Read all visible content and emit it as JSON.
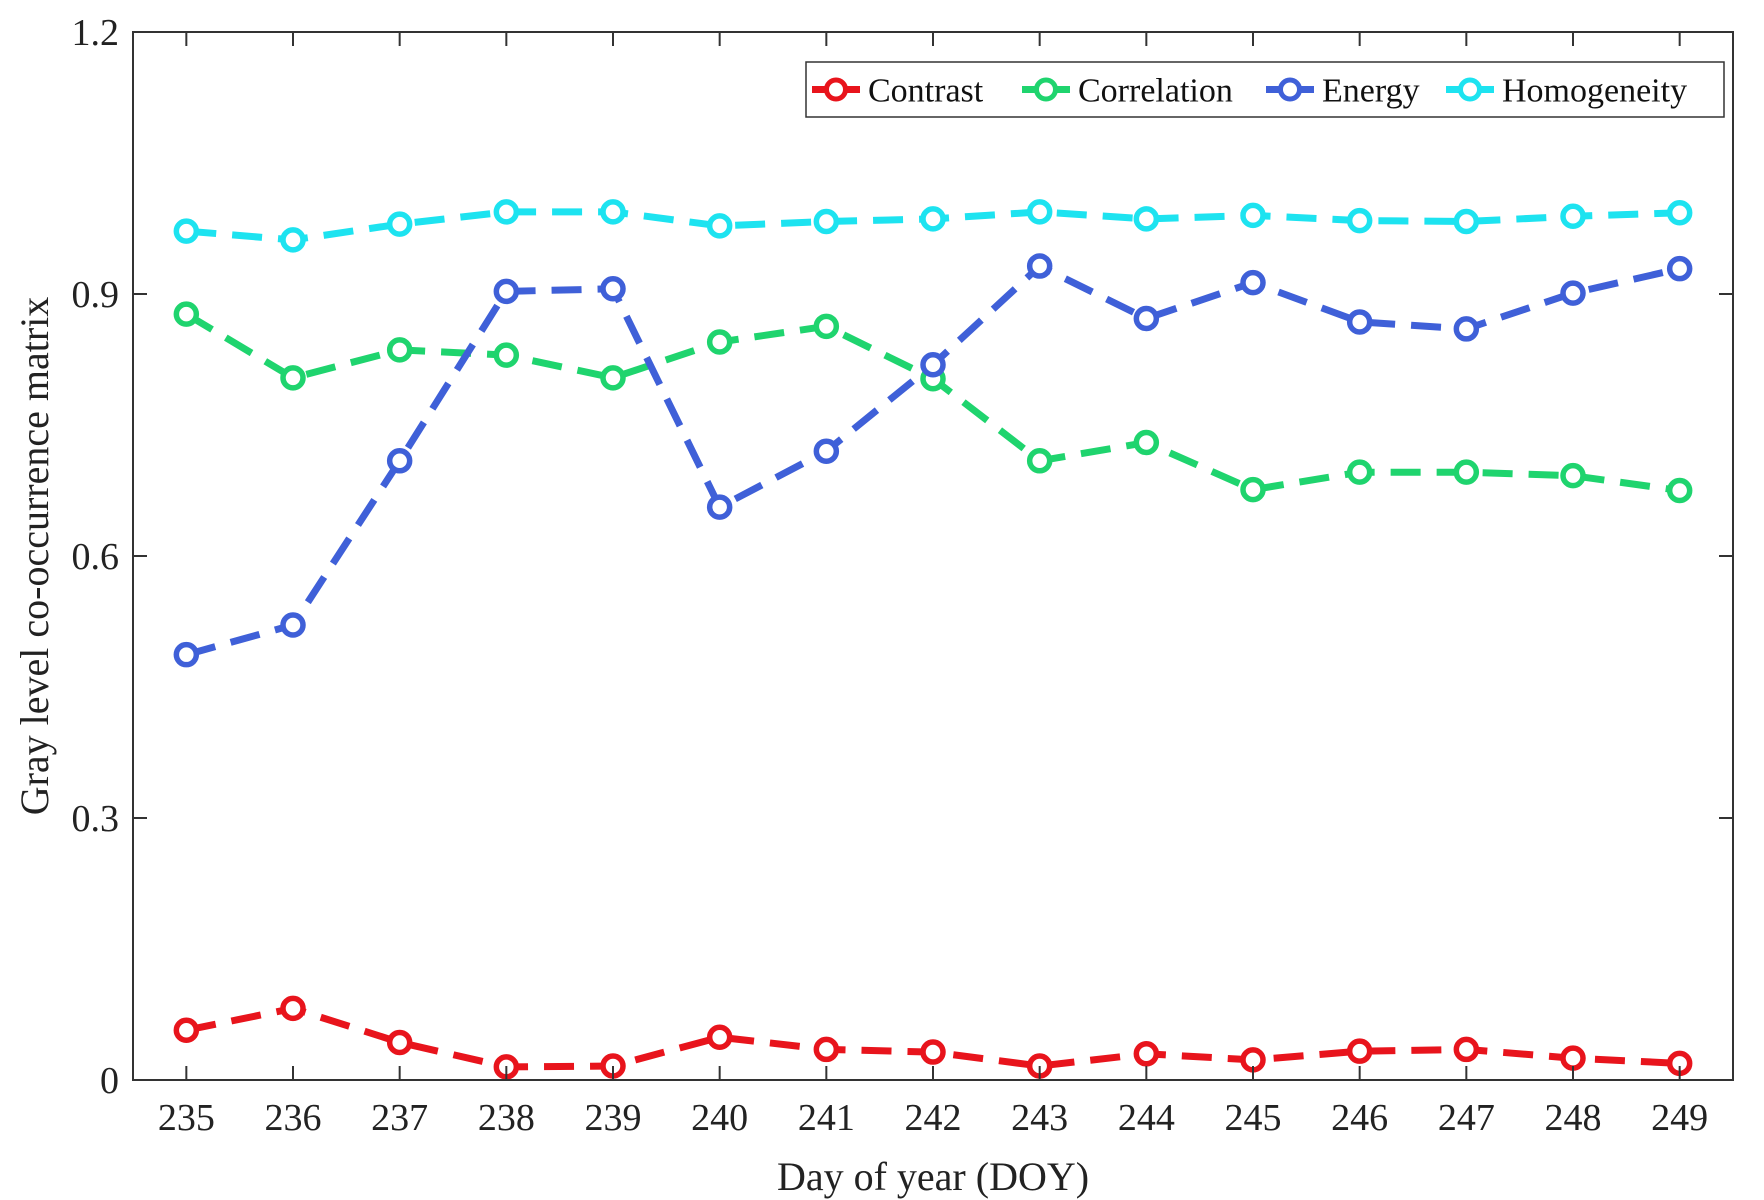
{
  "chart_data": {
    "type": "line",
    "title": "",
    "xlabel": "Day of year (DOY)",
    "ylabel": "Gray level co-occurrence matrix",
    "x": [
      235,
      236,
      237,
      238,
      239,
      240,
      241,
      242,
      243,
      244,
      245,
      246,
      247,
      248,
      249
    ],
    "xlim": [
      234.5,
      249.5
    ],
    "ylim": [
      0,
      1.2
    ],
    "yticks": [
      0,
      0.3,
      0.6,
      0.9,
      1.2
    ],
    "ytick_labels": [
      "0",
      "0.3",
      "0.6",
      "0.9",
      "1.2"
    ],
    "grid": false,
    "legend_position": "top-right",
    "series": [
      {
        "name": "Contrast",
        "color": "#e8141c",
        "values": [
          0.057,
          0.082,
          0.043,
          0.015,
          0.016,
          0.049,
          0.035,
          0.032,
          0.016,
          0.03,
          0.023,
          0.033,
          0.035,
          0.025,
          0.019
        ]
      },
      {
        "name": "Correlation",
        "color": "#1fd46e",
        "values": [
          0.877,
          0.804,
          0.836,
          0.83,
          0.804,
          0.845,
          0.863,
          0.803,
          0.709,
          0.73,
          0.676,
          0.696,
          0.696,
          0.692,
          0.675
        ]
      },
      {
        "name": "Energy",
        "color": "#3f60d8",
        "values": [
          0.487,
          0.521,
          0.709,
          0.903,
          0.906,
          0.656,
          0.72,
          0.819,
          0.932,
          0.872,
          0.913,
          0.868,
          0.86,
          0.901,
          0.929
        ]
      },
      {
        "name": "Homogeneity",
        "color": "#1de3f0",
        "values": [
          0.972,
          0.962,
          0.98,
          0.994,
          0.994,
          0.978,
          0.983,
          0.986,
          0.994,
          0.986,
          0.99,
          0.984,
          0.983,
          0.989,
          0.993
        ]
      }
    ]
  }
}
